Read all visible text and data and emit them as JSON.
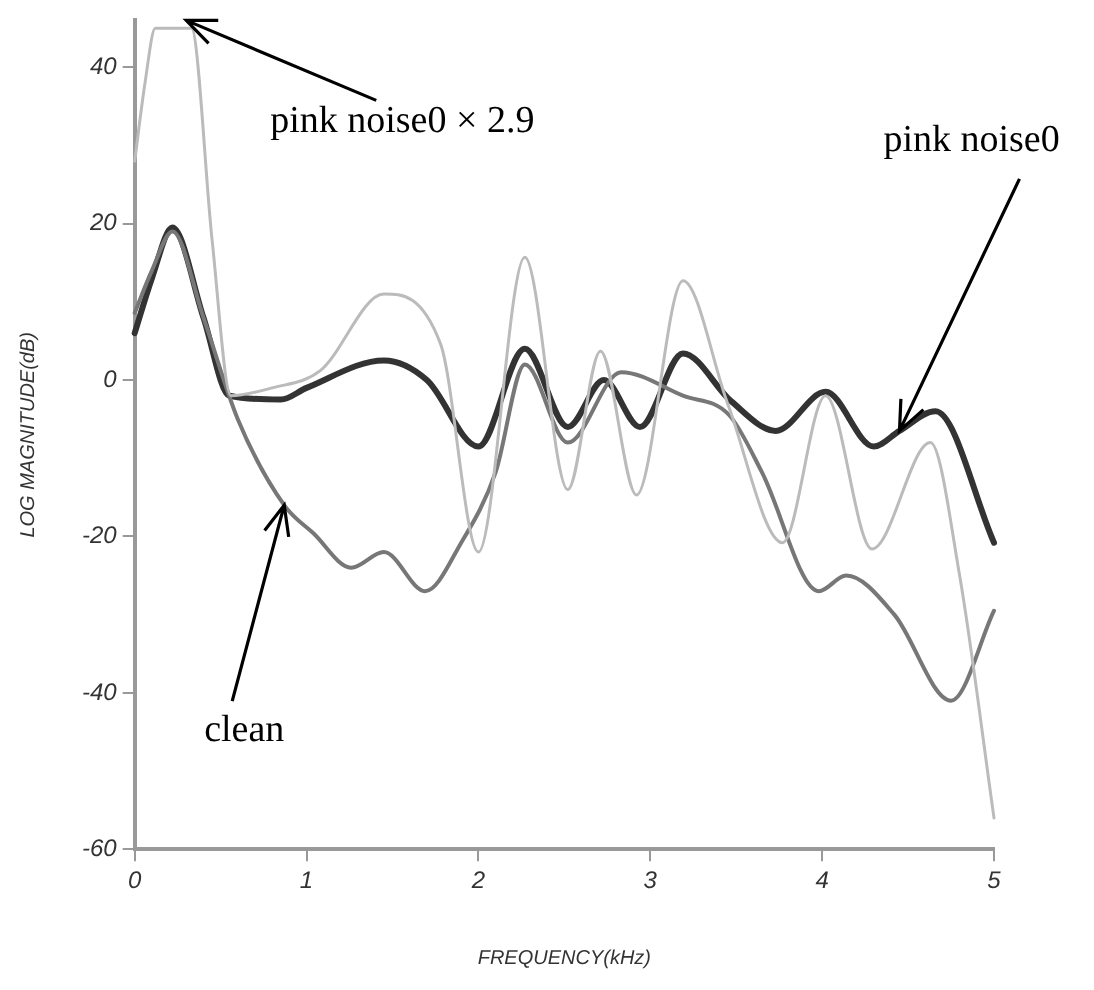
{
  "chart_data": {
    "type": "line",
    "xlabel": "FREQUENCY(kHz)",
    "ylabel": "LOG MAGNITUDE(dB)",
    "xlim": [
      0,
      5
    ],
    "xticks": [
      0,
      1,
      2,
      3,
      4,
      5
    ],
    "ylim": [
      -60,
      46
    ],
    "yticks": [
      -60,
      -40,
      -20,
      0,
      20,
      40
    ],
    "grid": false,
    "legend": false,
    "marker": "none",
    "line_style": "solid",
    "series": [
      {
        "color": "#bbbbbb",
        "x": [
          0,
          0.06,
          0.12,
          0.33,
          0.45,
          0.56,
          0.8,
          1.08,
          1.45,
          1.78,
          2.0,
          2.27,
          2.52,
          2.71,
          2.92,
          3.19,
          3.45,
          3.77,
          4.02,
          4.29,
          4.63,
          4.8,
          5
        ],
        "values": [
          28,
          38,
          45,
          45,
          18,
          -2,
          -1,
          1.2,
          11,
          4.6,
          -22,
          15.7,
          -14,
          3.7,
          -14.7,
          12.7,
          -3,
          -20.8,
          -2,
          -21.6,
          -8,
          -25,
          -56
        ]
      },
      {
        "color": "#777777",
        "x": [
          0,
          0.1,
          0.22,
          0.4,
          0.6,
          0.87,
          1.04,
          1.26,
          1.45,
          1.69,
          1.9,
          2.1,
          2.27,
          2.52,
          2.83,
          3.19,
          3.46,
          3.65,
          3.98,
          4.14,
          4.42,
          4.75,
          5
        ],
        "values": [
          8.6,
          14,
          19,
          8,
          -5,
          -16,
          -19.6,
          -24,
          -22,
          -27,
          -20.8,
          -11.8,
          2,
          -8,
          1,
          -2,
          -4.5,
          -11.8,
          -27,
          -25,
          -30,
          -41,
          -29.5
        ]
      },
      {
        "color": "#333333",
        "x": [
          0,
          0.1,
          0.22,
          0.4,
          0.55,
          0.85,
          1.0,
          1.45,
          1.7,
          2.0,
          2.27,
          2.52,
          2.73,
          2.94,
          3.19,
          3.47,
          3.73,
          4.02,
          4.3,
          4.45,
          4.66,
          5
        ],
        "values": [
          6,
          13,
          19.5,
          8,
          -2,
          -2.5,
          -1,
          2.5,
          0,
          -8.5,
          4,
          -6,
          0,
          -6,
          3.4,
          -2.7,
          -6.5,
          -1.5,
          -8.5,
          -6.5,
          -4,
          -20.8
        ]
      }
    ],
    "annotations": [
      {
        "text": "pink noise0 × 2.9",
        "x": 0.3,
        "y": 46
      },
      {
        "text": "pink noise0",
        "x": 4.45,
        "y": -6.5
      },
      {
        "text": "clean",
        "x": 0.87,
        "y": -16
      }
    ]
  }
}
